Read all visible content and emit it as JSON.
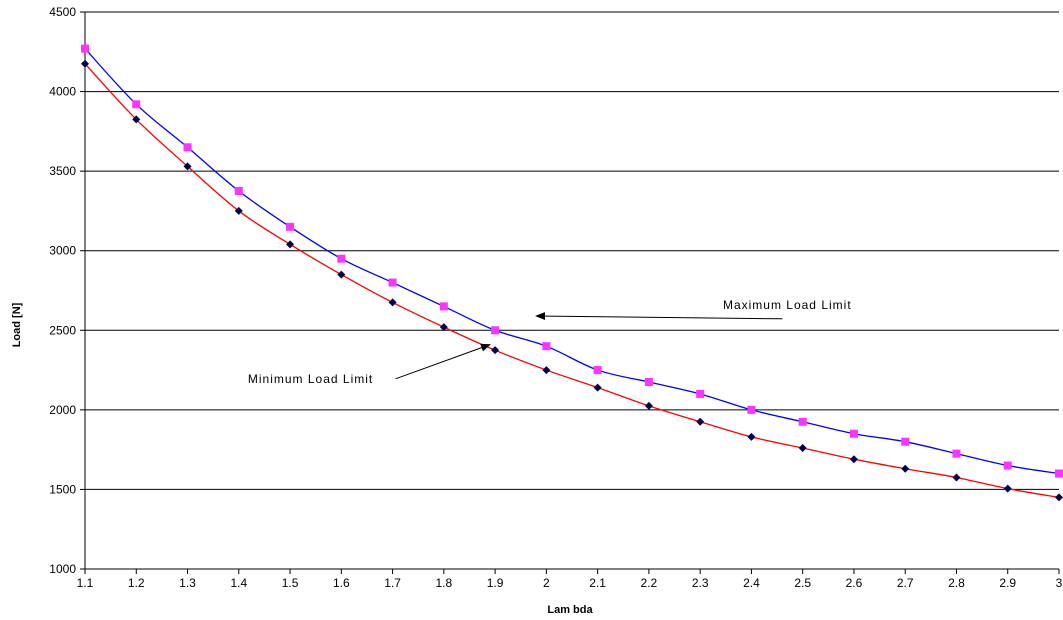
{
  "chart_data": {
    "type": "scatter",
    "title": "",
    "xlabel": "Lam bda",
    "ylabel": "Load [N]",
    "xlim": [
      1.1,
      3.0
    ],
    "ylim": [
      1000,
      4500
    ],
    "x_ticks": [
      "1.1",
      "1.2",
      "1.3",
      "1.4",
      "1.5",
      "1.6",
      "1.7",
      "1.8",
      "1.9",
      "2",
      "2.1",
      "2.2",
      "2.3",
      "2.4",
      "2.5",
      "2.6",
      "2.7",
      "2.8",
      "2.9",
      "3"
    ],
    "y_ticks": [
      "1000",
      "1500",
      "2000",
      "2500",
      "3000",
      "3500",
      "4000",
      "4500"
    ],
    "grid": "horizontal",
    "x": [
      1.1,
      1.2,
      1.3,
      1.4,
      1.5,
      1.6,
      1.7,
      1.8,
      1.9,
      2.0,
      2.1,
      2.2,
      2.3,
      2.4,
      2.5,
      2.6,
      2.7,
      2.8,
      2.9,
      3.0
    ],
    "series": [
      {
        "marker": "square",
        "color": "#ff33ff",
        "line_color": "#0000ff",
        "values": [
          4270,
          3920,
          3650,
          3375,
          3150,
          2950,
          2800,
          2650,
          2500,
          2400,
          2250,
          2175,
          2100,
          2000,
          1925,
          1850,
          1800,
          1725,
          1650,
          1600
        ]
      },
      {
        "marker": "diamond",
        "color": "#00004d",
        "line_color": "#ff0000",
        "values": [
          4175,
          3825,
          3530,
          3250,
          3040,
          2850,
          2675,
          2520,
          2375,
          2250,
          2140,
          2025,
          1925,
          1830,
          1760,
          1690,
          1630,
          1575,
          1505,
          1450
        ]
      }
    ],
    "annotations": [
      {
        "text": "Maximum Load Limit",
        "x": 2.47,
        "y": 2635,
        "arrow_to": [
          1.98,
          2590
        ]
      },
      {
        "text": "Minimum Load Limit",
        "x": 1.54,
        "y": 2170,
        "arrow_to": [
          1.89,
          2410
        ]
      }
    ]
  }
}
